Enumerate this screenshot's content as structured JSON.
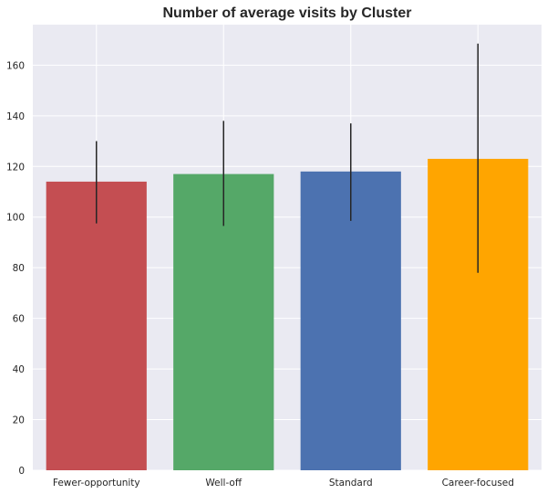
{
  "chart_data": {
    "type": "bar",
    "title": "Number of average visits by Cluster",
    "xlabel": "",
    "ylabel": "",
    "categories": [
      "Fewer-opportunity",
      "Well-off",
      "Standard",
      "Career-focused"
    ],
    "values": [
      114,
      117,
      118,
      123
    ],
    "error_low": [
      97.5,
      96.5,
      98.5,
      78
    ],
    "error_high": [
      130,
      138,
      137,
      168.5
    ],
    "colors": [
      "#c44e52",
      "#55a868",
      "#4c72b0",
      "#ffa500"
    ],
    "ylim": [
      0,
      176
    ],
    "yticks": [
      0,
      20,
      40,
      60,
      80,
      100,
      120,
      140,
      160
    ],
    "grid": true,
    "legend": "none",
    "background": "#eaeaf2"
  }
}
